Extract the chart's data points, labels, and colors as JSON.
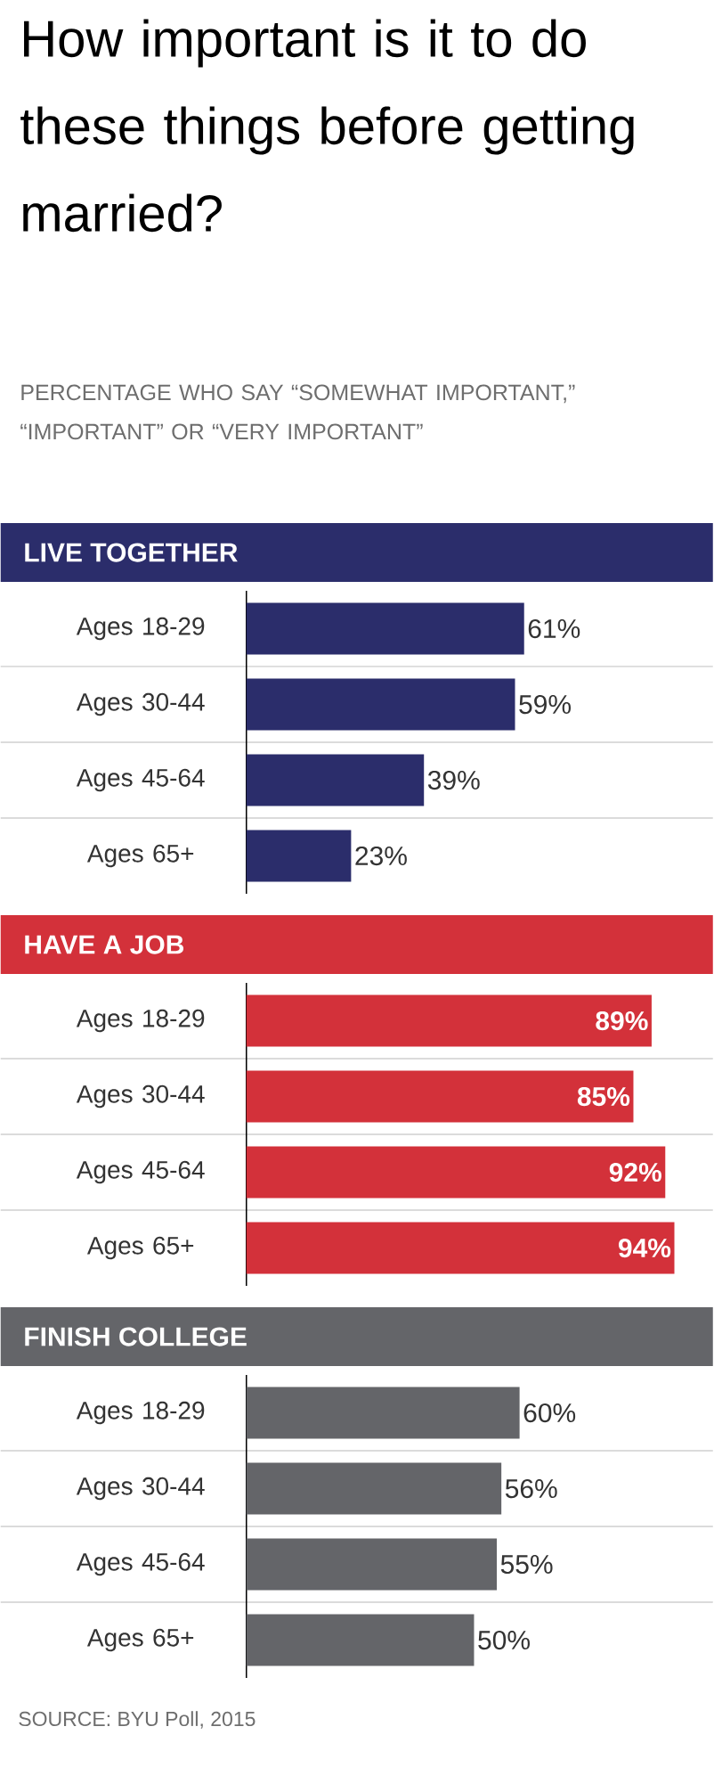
{
  "chart_data": [
    {
      "type": "other",
      "title": "How important is it to do these things before getting married?",
      "subtitle": "PERCENTAGE WHO SAY “SOMEWHAT IMPORTANT,” “IMPORTANT” OR “VERY IMPORTANT”"
    },
    {
      "type": "bar",
      "orientation": "horizontal",
      "title": "LIVE TOGETHER",
      "categories": [
        "Ages 18-29",
        "Ages 30-44",
        "Ages 45-64",
        "Ages 65+"
      ],
      "values": [
        61,
        59,
        39,
        23
      ],
      "value_labels": [
        "61%",
        "59%",
        "39%",
        "23%"
      ],
      "color": "#2b2d6b"
    },
    {
      "type": "bar",
      "orientation": "horizontal",
      "title": "HAVE A JOB",
      "categories": [
        "Ages 18-29",
        "Ages 30-44",
        "Ages 45-64",
        "Ages 65+"
      ],
      "values": [
        89,
        85,
        92,
        94
      ],
      "value_labels": [
        "89%",
        "85%",
        "92%",
        "94%"
      ],
      "color": "#d3313a"
    },
    {
      "type": "bar",
      "orientation": "horizontal",
      "title": "FINISH COLLEGE",
      "categories": [
        "Ages 18-29",
        "Ages 30-44",
        "Ages 45-64",
        "Ages 65+"
      ],
      "values": [
        60,
        56,
        55,
        50
      ],
      "value_labels": [
        "60%",
        "56%",
        "55%",
        "50%"
      ],
      "color": "#646569",
      "annotations": [
        "SOURCE: BYU Poll, 2015"
      ]
    }
  ]
}
